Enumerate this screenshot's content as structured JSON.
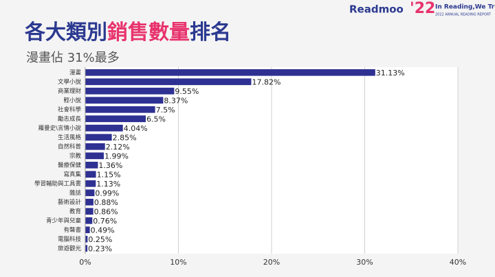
{
  "chart_data": {
    "type": "barh",
    "title": [
      "各大類別",
      "銷售數量",
      "排名"
    ],
    "title_colors": [
      "#2b3990",
      "#e8336d",
      "#2b3990"
    ],
    "subtitle": "漫畫佔 31%最多",
    "logo": {
      "brand": "Readmoo",
      "year": "'22",
      "slogan": "In Reading,We Trust",
      "report": "2022 ANNUAL READING REPORT"
    },
    "categories": [
      "漫畫",
      "文學小說",
      "商業理財",
      "輕小說",
      "社會科學",
      "勵志成長",
      "羅曼史\\言情小說",
      "生活風格",
      "自然科普",
      "宗教",
      "醫療保健",
      "寫真集",
      "學習輔助與工具書",
      "雜誌",
      "藝術設計",
      "教育",
      "青少年與兒童",
      "有聲書",
      "電腦科技",
      "旅遊觀光"
    ],
    "values": [
      31.13,
      17.82,
      9.55,
      8.37,
      7.5,
      6.5,
      4.04,
      2.85,
      2.12,
      1.99,
      1.36,
      1.15,
      1.13,
      0.99,
      0.88,
      0.86,
      0.76,
      0.49,
      0.25,
      0.23
    ],
    "value_labels": [
      "31.13%",
      "17.82%",
      "9.55%",
      "8.37%",
      "7.5%",
      "6.5%",
      "4.04%",
      "2.85%",
      "2.12%",
      "1.99%",
      "1.36%",
      "1.15%",
      "1.13%",
      "0.99%",
      "0.88%",
      "0.86%",
      "0.76%",
      "0.49%",
      "0.25%",
      "0.23%"
    ],
    "color": "#2e3192",
    "xlim": [
      0,
      40
    ],
    "xticks": [
      {
        "value": 0,
        "label": "0%"
      },
      {
        "value": 10,
        "label": "10%"
      },
      {
        "value": 20,
        "label": "20%"
      },
      {
        "value": 30,
        "label": "30%"
      },
      {
        "value": 40,
        "label": "40%"
      }
    ],
    "grid": true
  }
}
